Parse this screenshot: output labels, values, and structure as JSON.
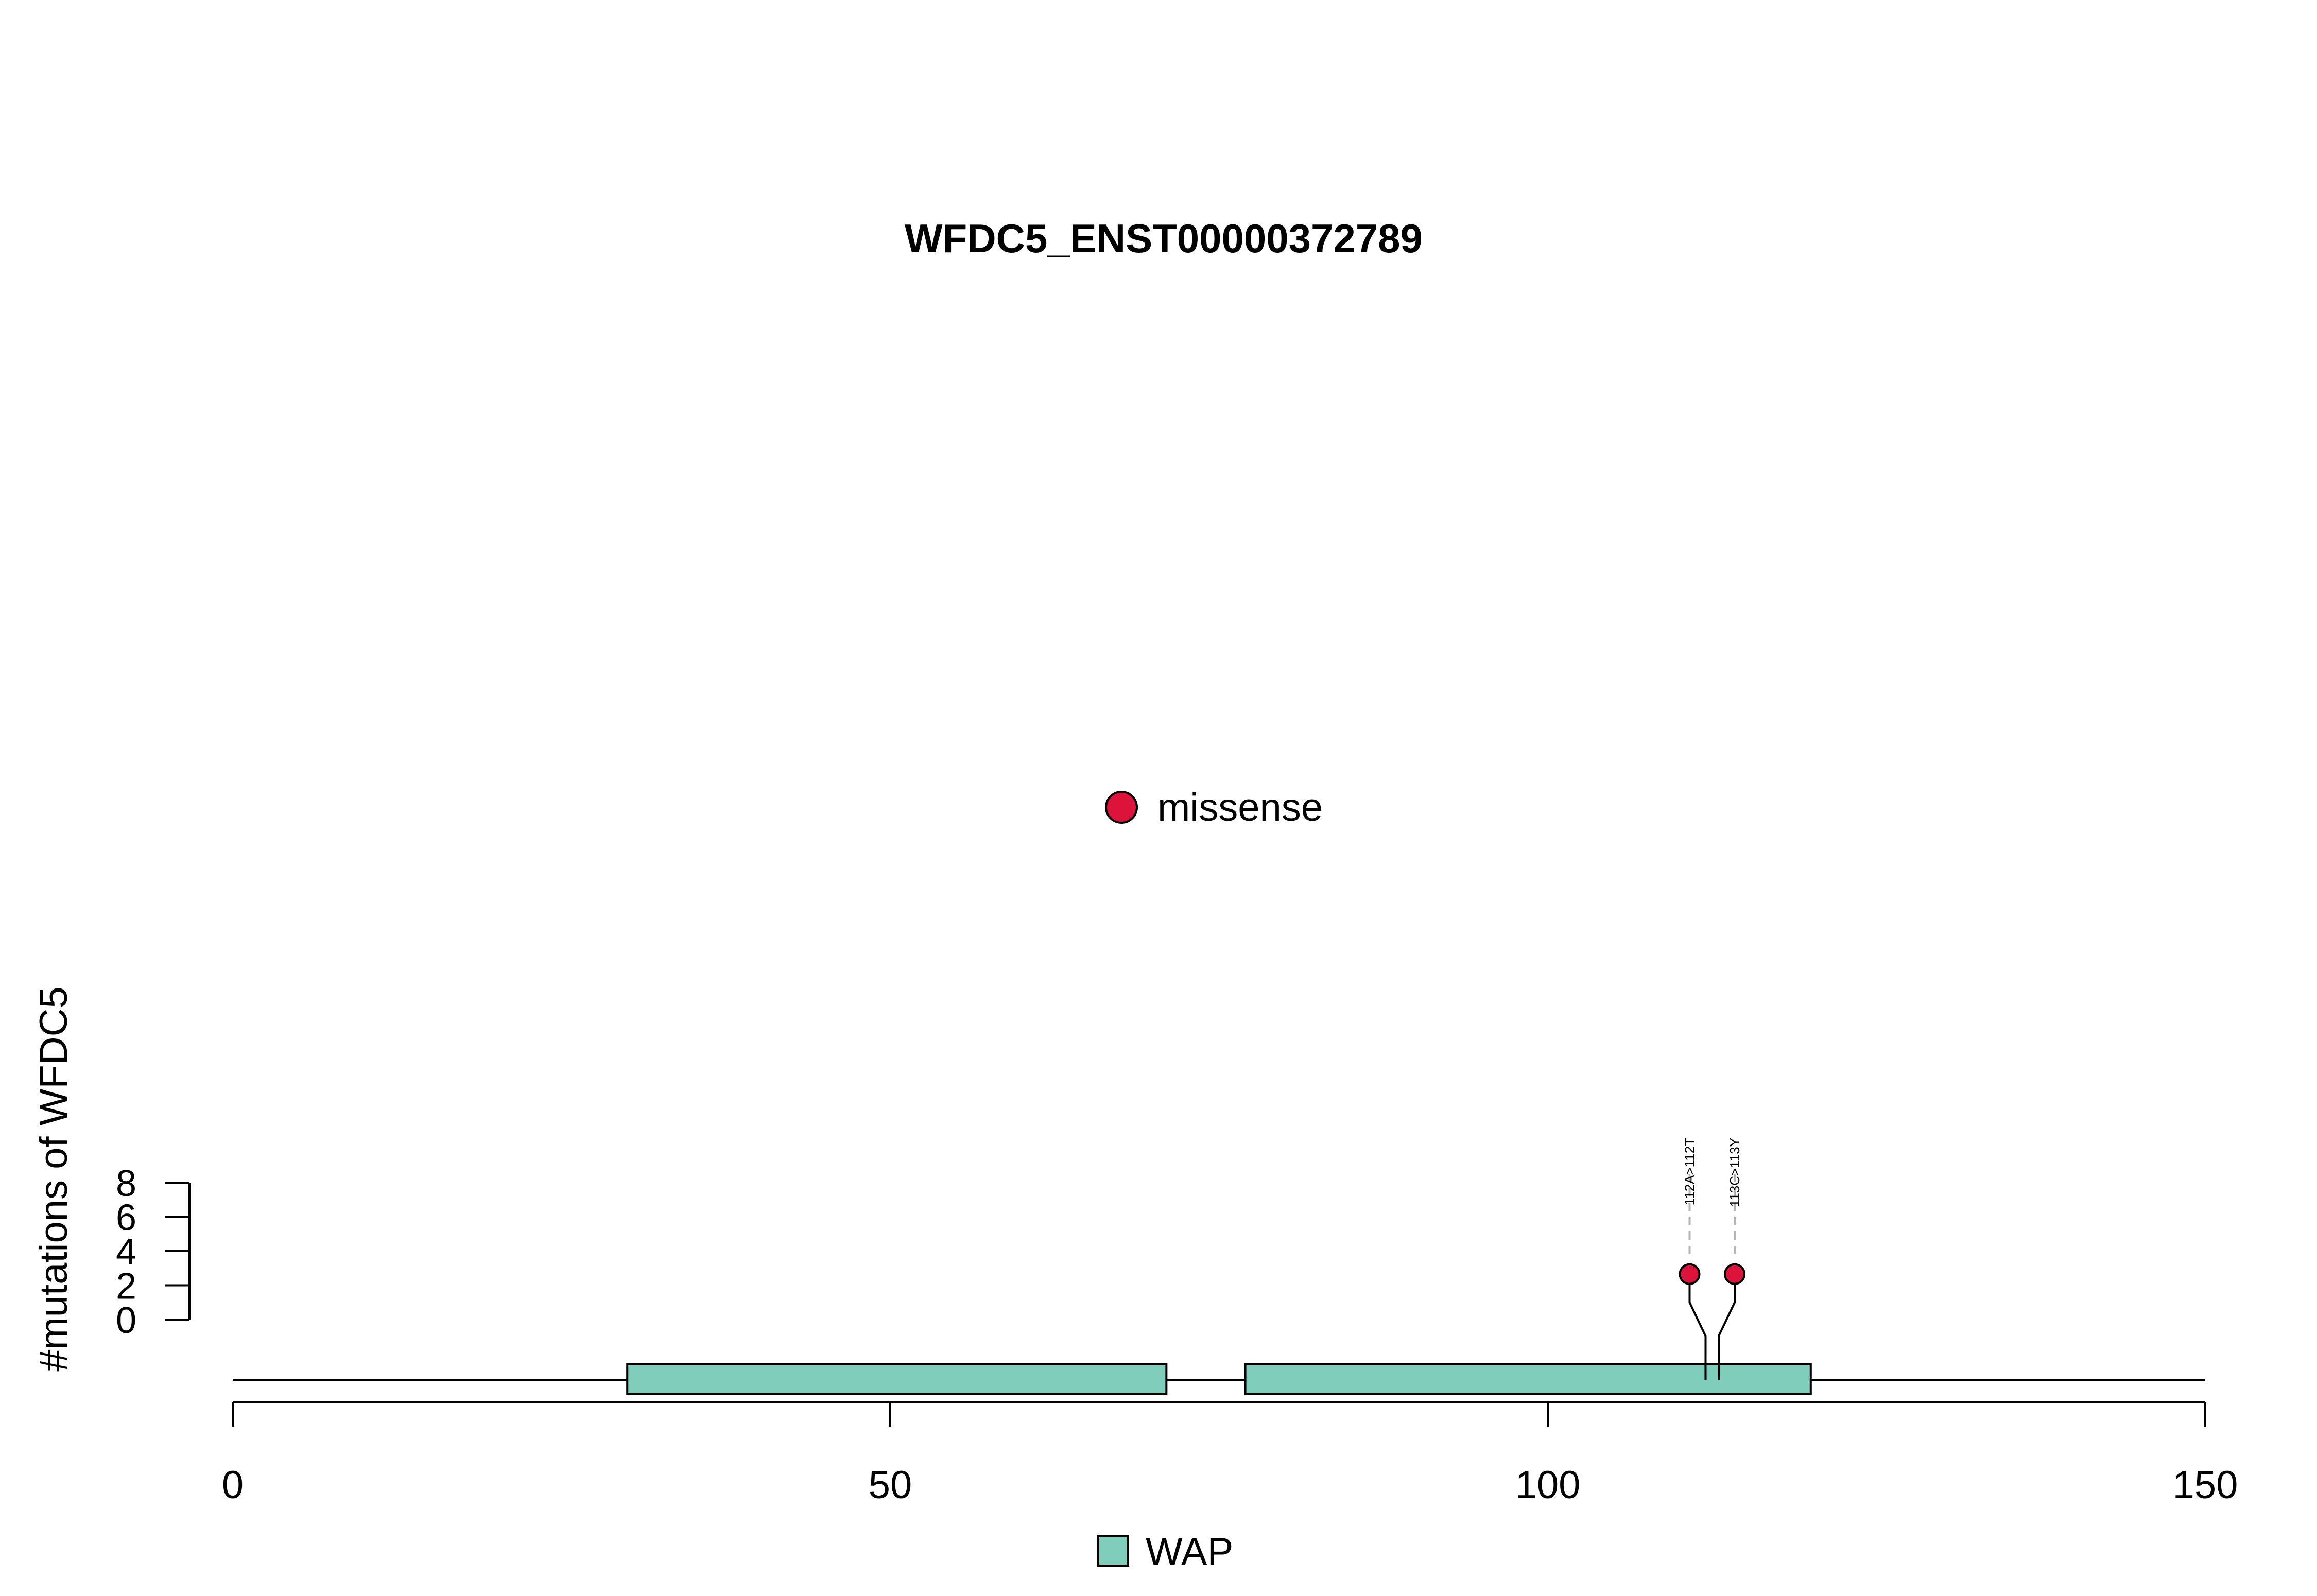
{
  "chart_data": {
    "type": "lollipop",
    "title": "WFDC5_ENST00000372789",
    "ylabel": "#mutations of WFDC5",
    "xlim": [
      0,
      150
    ],
    "x_ticks": [
      0,
      50,
      100,
      150
    ],
    "ylim": [
      0,
      8
    ],
    "y_ticks": [
      0,
      2,
      4,
      6,
      8
    ],
    "protein_length": 150,
    "domains": [
      {
        "name": "WAP",
        "start": 30,
        "end": 71
      },
      {
        "name": "WAP",
        "start": 77,
        "end": 120
      }
    ],
    "mutations": [
      {
        "position": 112,
        "label": "112A>112T",
        "count": 1,
        "type": "missense"
      },
      {
        "position": 113,
        "label": "113C>113Y",
        "count": 1,
        "type": "missense"
      }
    ],
    "mutation_legend": [
      {
        "label": "missense",
        "color": "#dc143c"
      }
    ],
    "domain_legend": [
      {
        "label": "WAP",
        "color": "#7fcdbb"
      }
    ]
  }
}
